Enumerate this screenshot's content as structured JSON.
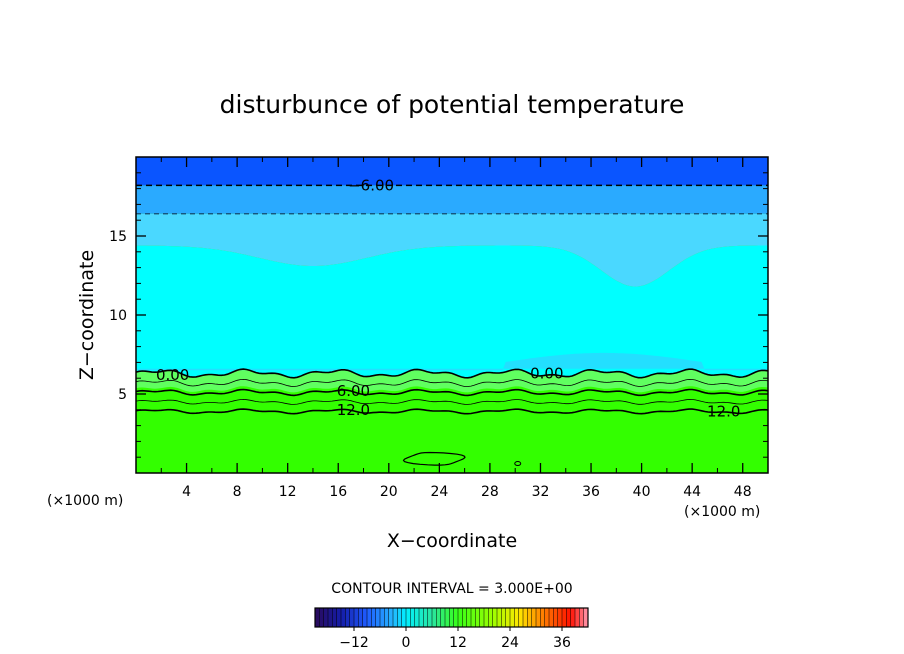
{
  "chart_data": {
    "type": "heatmap",
    "title": "disturbunce of potential temperature",
    "xlabel": "X−coordinate",
    "ylabel": "Z−coordinate",
    "x_unit_left": "(×1000 m)",
    "x_unit_right": "(×1000 m)",
    "xlim": [
      0,
      50
    ],
    "ylim": [
      0,
      20
    ],
    "x_ticks": [
      4,
      8,
      12,
      16,
      20,
      24,
      28,
      32,
      36,
      40,
      44,
      48
    ],
    "y_ticks": [
      5,
      10,
      15
    ],
    "contour_interval_text": "CONTOUR INTERVAL = 3.000E+00",
    "contour_labels": [
      {
        "text": "−6.00",
        "x": 18.6,
        "z": 18.2
      },
      {
        "text": "0.00",
        "x": 2.9,
        "z": 6.2
      },
      {
        "text": "0.00",
        "x": 32.5,
        "z": 6.3
      },
      {
        "text": "6.00",
        "x": 17.2,
        "z": 5.2
      },
      {
        "text": "12.0",
        "x": 17.2,
        "z": 4.0
      },
      {
        "text": "12.0",
        "x": 46.5,
        "z": 3.9
      }
    ],
    "contours": [
      {
        "level": -6,
        "z": 18.2
      },
      {
        "level": -3,
        "z": 16.4
      },
      {
        "level": 0,
        "z_mean": 6.3
      },
      {
        "level": 3,
        "z_mean": 5.7
      },
      {
        "level": 6,
        "z_mean": 5.1
      },
      {
        "level": 9,
        "z_mean": 4.5
      },
      {
        "level": 12,
        "z_mean": 3.9
      }
    ],
    "colorbar": {
      "min": -21,
      "max": 42,
      "tick_values": [
        -12,
        0,
        12,
        24,
        36
      ],
      "tick_labels": [
        "−12",
        "0",
        "12",
        "24",
        "36"
      ]
    },
    "colors": {
      "upper_band_top": "#0a55ff",
      "upper_band": "#2aaaff",
      "mid_light_blue": "#4ad8ff",
      "cyan": "#00ffff",
      "green_light": "#60ff60",
      "green": "#33ff00"
    },
    "grid": false,
    "legend": "none"
  }
}
